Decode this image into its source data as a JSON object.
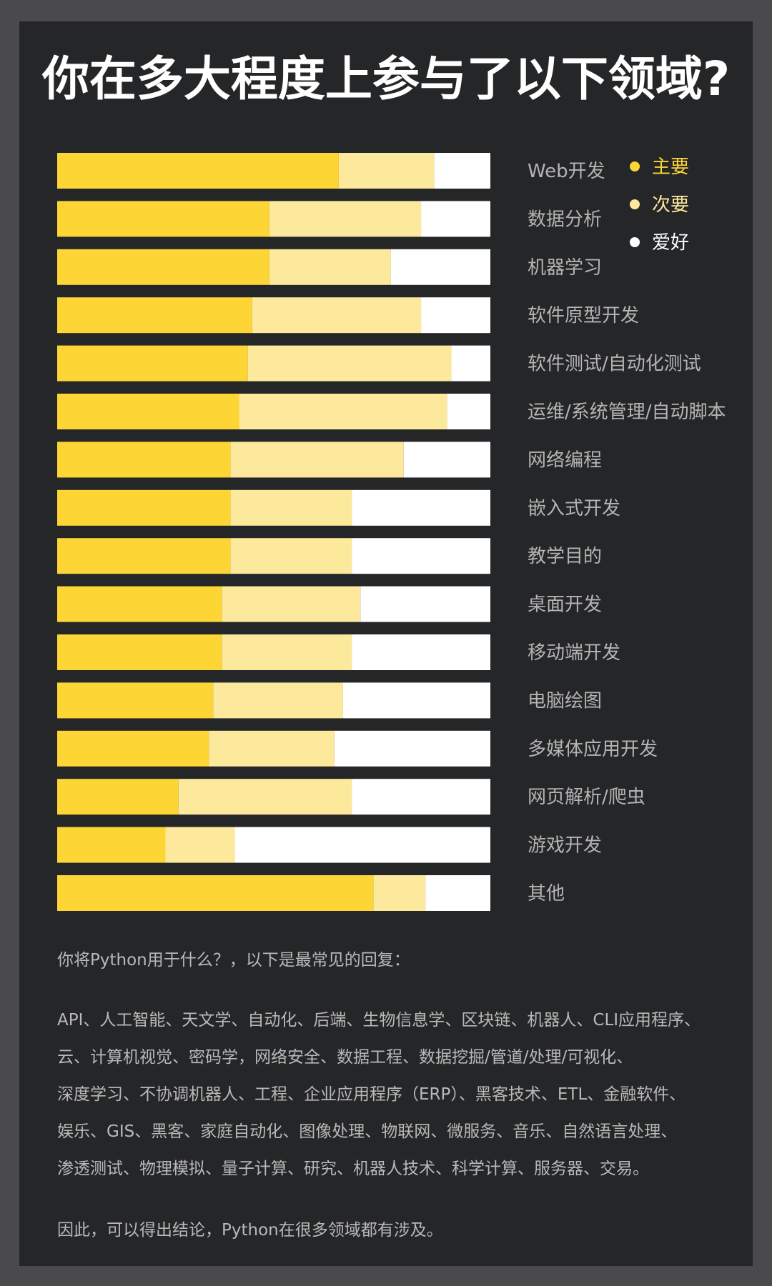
{
  "title": "你在多大程度上参与了以下领域?",
  "chart_data": {
    "type": "bar",
    "stacked": true,
    "orientation": "horizontal",
    "categories": [
      "Web开发",
      "数据分析",
      "机器学习",
      "软件原型开发",
      "软件测试/自动化测试",
      "运维/系统管理/自动脚本",
      "网络编程",
      "嵌入式开发",
      "教学目的",
      "桌面开发",
      "移动端开发",
      "电脑绘图",
      "多媒体应用开发",
      "网页解析/爬虫",
      "游戏开发",
      "其他"
    ],
    "series": [
      {
        "name": "主要",
        "color": "#fdd535",
        "values": [
          65,
          49,
          49,
          45,
          44,
          42,
          40,
          40,
          40,
          38,
          38,
          36,
          35,
          28,
          25,
          73
        ]
      },
      {
        "name": "次要",
        "color": "#fde99b",
        "values": [
          22,
          35,
          28,
          39,
          47,
          48,
          40,
          28,
          28,
          32,
          30,
          30,
          29,
          40,
          16,
          12
        ]
      },
      {
        "name": "爱好",
        "color": "#ffffff",
        "values": [
          13,
          16,
          23,
          16,
          9,
          10,
          20,
          32,
          32,
          30,
          32,
          34,
          36,
          32,
          59,
          15
        ]
      }
    ],
    "xlim": [
      0,
      100
    ],
    "legend_position": "top-right"
  },
  "text": {
    "intro": "你将Python用于什么？，以下是最常见的回复：",
    "list_lines": [
      "API、人工智能、天文学、自动化、后端、生物信息学、区块链、机器人、CLI应用程序、",
      "云、计算机视觉、密码学，网络安全、数据工程、数据挖掘/管道/处理/可视化、",
      "深度学习、不协调机器人、工程、企业应用程序（ERP）、黑客技术、ETL、金融软件、",
      "娱乐、GIS、黑客、家庭自动化、图像处理、物联网、微服务、音乐、自然语言处理、",
      "渗透测试、物理模拟、量子计算、研究、机器人技术、科学计算、服务器、交易。"
    ],
    "conclusion": "因此，可以得出结论，Python在很多领域都有涉及。"
  }
}
